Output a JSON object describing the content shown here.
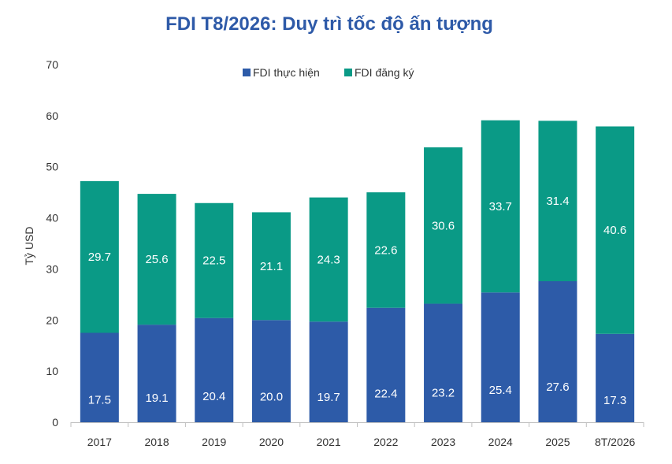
{
  "chart_data": {
    "type": "bar",
    "stacked": true,
    "title": "FDI T8/2026: Duy trì tốc độ ấn tượng",
    "ylabel": "Tỷ USD",
    "xlabel": "",
    "ylim": [
      0,
      70
    ],
    "yticks": [
      0,
      10,
      20,
      30,
      40,
      50,
      60,
      70
    ],
    "grid": false,
    "legend_position": "top-center",
    "categories": [
      "2017",
      "2018",
      "2019",
      "2020",
      "2021",
      "2022",
      "2023",
      "2024",
      "2025",
      "8T/2026"
    ],
    "series": [
      {
        "name": "FDI thực hiện",
        "color": "#2d5ba8",
        "values": [
          17.5,
          19.1,
          20.4,
          20.0,
          19.7,
          22.4,
          23.2,
          25.4,
          27.6,
          17.3
        ],
        "labels": [
          "17.5",
          "19.1",
          "20.4",
          "20.0",
          "19.7",
          "22.4",
          "23.2",
          "25.4",
          "27.6",
          "17.3"
        ]
      },
      {
        "name": "FDI đăng ký",
        "color": "#0a9a86",
        "values": [
          29.7,
          25.6,
          22.5,
          21.1,
          24.3,
          22.6,
          30.6,
          33.7,
          31.4,
          40.6
        ],
        "labels": [
          "29.7",
          "25.6",
          "22.5",
          "21.1",
          "24.3",
          "22.6",
          "30.6",
          "33.7",
          "31.4",
          "40.6"
        ]
      }
    ]
  }
}
